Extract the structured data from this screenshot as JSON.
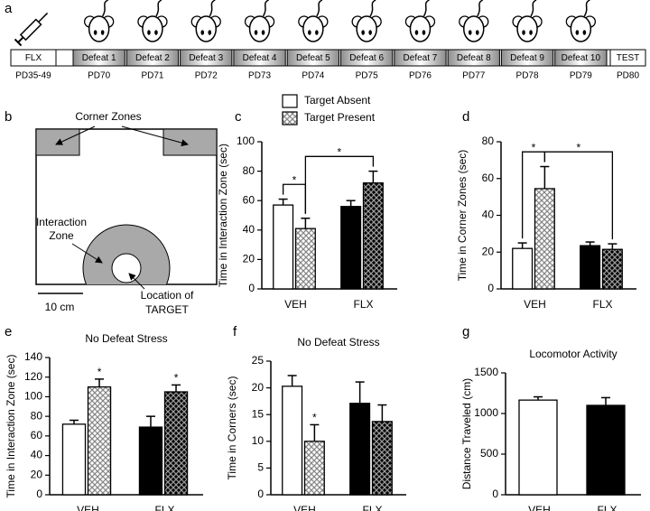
{
  "timeline": {
    "letter": "a",
    "stages": [
      {
        "label": "FLX",
        "day": "PD35-49"
      },
      {
        "label": "Defeat 1",
        "day": "PD70"
      },
      {
        "label": "Defeat 2",
        "day": "PD71"
      },
      {
        "label": "Defeat 3",
        "day": "PD72"
      },
      {
        "label": "Defeat 4",
        "day": "PD73"
      },
      {
        "label": "Defeat 5",
        "day": "PD74"
      },
      {
        "label": "Defeat 6",
        "day": "PD75"
      },
      {
        "label": "Defeat 7",
        "day": "PD76"
      },
      {
        "label": "Defeat 8",
        "day": "PD77"
      },
      {
        "label": "Defeat 9",
        "day": "PD78"
      },
      {
        "label": "Defeat 10",
        "day": "PD79"
      },
      {
        "label": "TEST",
        "day": "PD80"
      }
    ]
  },
  "arena": {
    "letter": "b",
    "corner_zones": "Corner Zones",
    "interaction_zone": [
      "Interaction",
      "Zone"
    ],
    "scale": "10 cm",
    "target": [
      "Location of",
      "TARGET"
    ]
  },
  "chart_data": [
    {
      "type": "bar",
      "panel": "c",
      "y_label": "Time in Interaction Zone (sec)",
      "categories": [
        "VEH",
        "FLX"
      ],
      "ylim": [
        0,
        100
      ],
      "yticks": [
        0,
        20,
        40,
        60,
        80,
        100
      ],
      "series": [
        {
          "name": "Target Absent",
          "values": [
            57,
            56
          ],
          "errors": [
            4,
            4
          ],
          "colors": [
            "#ffffff",
            "#000000"
          ]
        },
        {
          "name": "Target Present",
          "values": [
            41,
            72
          ],
          "errors": [
            7,
            8
          ],
          "colors": [
            "#ffffff",
            "#000000"
          ],
          "pattern": "crosshatch"
        }
      ],
      "comparisons": [
        {
          "from": [
            0,
            0
          ],
          "to": [
            1,
            0
          ],
          "label": "*"
        },
        {
          "from": [
            1,
            0
          ],
          "to": [
            1,
            1
          ],
          "label": "*"
        }
      ]
    },
    {
      "type": "bar",
      "panel": "d",
      "y_label": "Time in Corner Zones (sec)",
      "categories": [
        "VEH",
        "FLX"
      ],
      "ylim": [
        0,
        80
      ],
      "yticks": [
        0,
        20,
        40,
        60,
        80
      ],
      "series": [
        {
          "values": [
            22,
            23.5
          ],
          "errors": [
            3,
            2
          ],
          "colors": [
            "#ffffff",
            "#000000"
          ]
        },
        {
          "values": [
            54.5,
            21.5
          ],
          "errors": [
            12,
            3
          ],
          "colors": [
            "#ffffff",
            "#000000"
          ],
          "pattern": "crosshatch"
        }
      ],
      "comparisons": [
        {
          "from": [
            0,
            0
          ],
          "to": [
            1,
            0
          ],
          "label": "*"
        },
        {
          "from": [
            1,
            0
          ],
          "to": [
            1,
            1
          ],
          "label": "*"
        }
      ]
    },
    {
      "type": "bar",
      "panel": "e",
      "title": "No Defeat Stress",
      "y_label": "Time in Interaction Zone (sec)",
      "categories": [
        "VEH",
        "FLX"
      ],
      "ylim": [
        0,
        140
      ],
      "yticks": [
        0,
        20,
        40,
        60,
        80,
        100,
        120,
        140
      ],
      "series": [
        {
          "values": [
            72,
            69
          ],
          "errors": [
            4,
            11
          ],
          "colors": [
            "#ffffff",
            "#000000"
          ]
        },
        {
          "values": [
            110,
            105
          ],
          "errors": [
            8,
            7
          ],
          "colors": [
            "#ffffff",
            "#000000"
          ],
          "pattern": "crosshatch"
        }
      ],
      "stars": [
        {
          "series": 1,
          "category": 0,
          "label": "*"
        },
        {
          "series": 1,
          "category": 1,
          "label": "*"
        }
      ]
    },
    {
      "type": "bar",
      "panel": "f",
      "title": "No Defeat Stress",
      "y_label": "Time in Corners (sec)",
      "categories": [
        "VEH",
        "FLX"
      ],
      "ylim": [
        0,
        25
      ],
      "yticks": [
        0,
        5,
        10,
        15,
        20,
        25
      ],
      "series": [
        {
          "values": [
            20.3,
            17.1
          ],
          "errors": [
            2,
            4
          ],
          "colors": [
            "#ffffff",
            "#000000"
          ]
        },
        {
          "values": [
            10,
            13.7
          ],
          "errors": [
            3.1,
            3.1
          ],
          "colors": [
            "#ffffff",
            "#000000"
          ],
          "pattern": "crosshatch"
        }
      ],
      "stars": [
        {
          "series": 1,
          "category": 0,
          "label": "*"
        }
      ]
    },
    {
      "type": "bar",
      "panel": "g",
      "title": "Locomotor Activity",
      "y_label": "Distance Traveled (cm)",
      "categories": [
        "VEH",
        "FLX"
      ],
      "ylim": [
        0,
        1500
      ],
      "yticks": [
        0,
        500,
        1000,
        1500
      ],
      "series": [
        {
          "values": [
            1165,
            1100
          ],
          "errors": [
            40,
            95
          ],
          "colors": [
            "#ffffff",
            "#000000"
          ]
        }
      ]
    }
  ]
}
